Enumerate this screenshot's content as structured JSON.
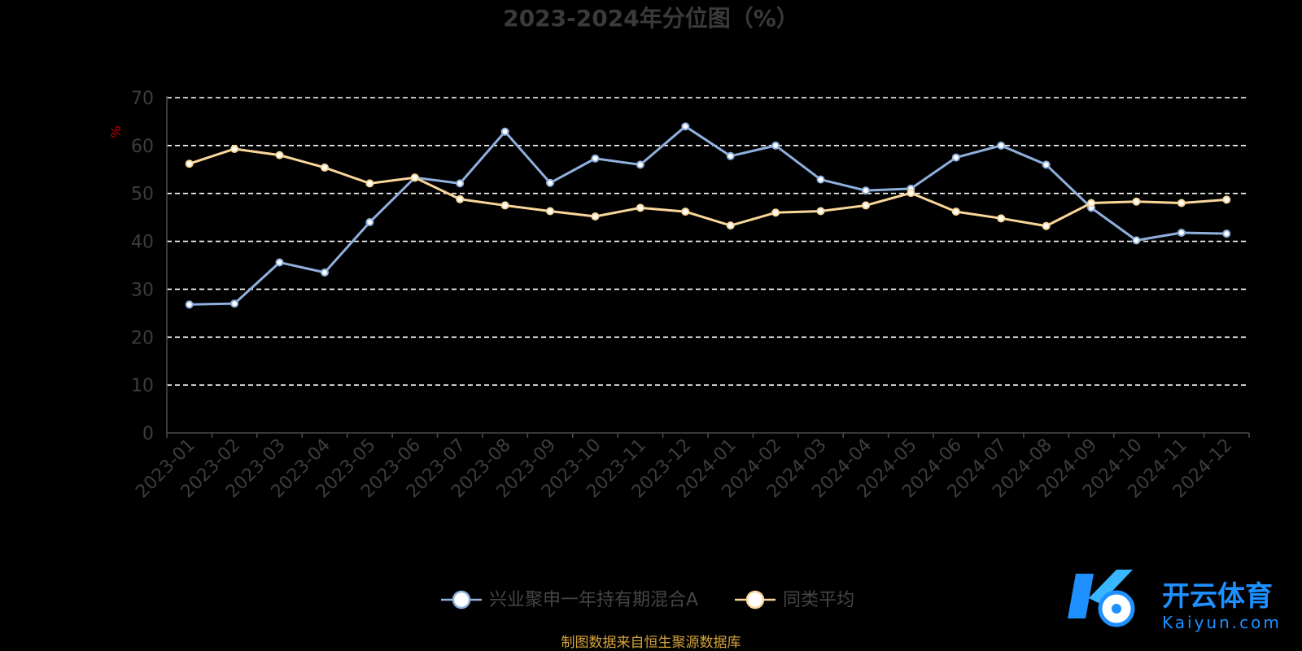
{
  "chart_data": {
    "type": "line",
    "title": "2023-2024年分位图（%）",
    "ylabel": "%",
    "xlabel": "",
    "ylim": [
      0,
      70
    ],
    "yticks": [
      0,
      10,
      20,
      30,
      40,
      50,
      60,
      70
    ],
    "grid": true,
    "legend_position": "bottom",
    "categories": [
      "2023-01",
      "2023-02",
      "2023-03",
      "2023-04",
      "2023-05",
      "2023-06",
      "2023-07",
      "2023-08",
      "2023-09",
      "2023-10",
      "2023-11",
      "2023-12",
      "2024-01",
      "2024-02",
      "2024-03",
      "2024-04",
      "2024-05",
      "2024-06",
      "2024-07",
      "2024-08",
      "2024-09",
      "2024-10",
      "2024-11",
      "2024-12"
    ],
    "series": [
      {
        "name": "兴业聚申一年持有期混合A",
        "color": "#8fb0dd",
        "values": [
          26.8,
          27.0,
          35.6,
          33.5,
          44.0,
          53.3,
          52.1,
          62.9,
          52.2,
          57.3,
          56.0,
          64.0,
          57.8,
          60.0,
          52.9,
          50.6,
          51.0,
          57.5,
          60.0,
          56.0,
          47.0,
          40.2,
          41.8,
          41.6
        ]
      },
      {
        "name": "同类平均",
        "color": "#f9d79a",
        "values": [
          56.2,
          59.3,
          58.0,
          55.4,
          52.1,
          53.3,
          48.8,
          47.5,
          46.3,
          45.2,
          47.0,
          46.2,
          43.3,
          46.0,
          46.3,
          47.5,
          50.1,
          46.2,
          44.8,
          43.2,
          48.0,
          48.3,
          48.0,
          48.7
        ]
      }
    ]
  },
  "footer": {
    "source": "制图数据来自恒生聚源数据库"
  },
  "watermark": {
    "brand": "开云体育",
    "site": "Kaiyun.com",
    "color": "#1e90ff"
  }
}
